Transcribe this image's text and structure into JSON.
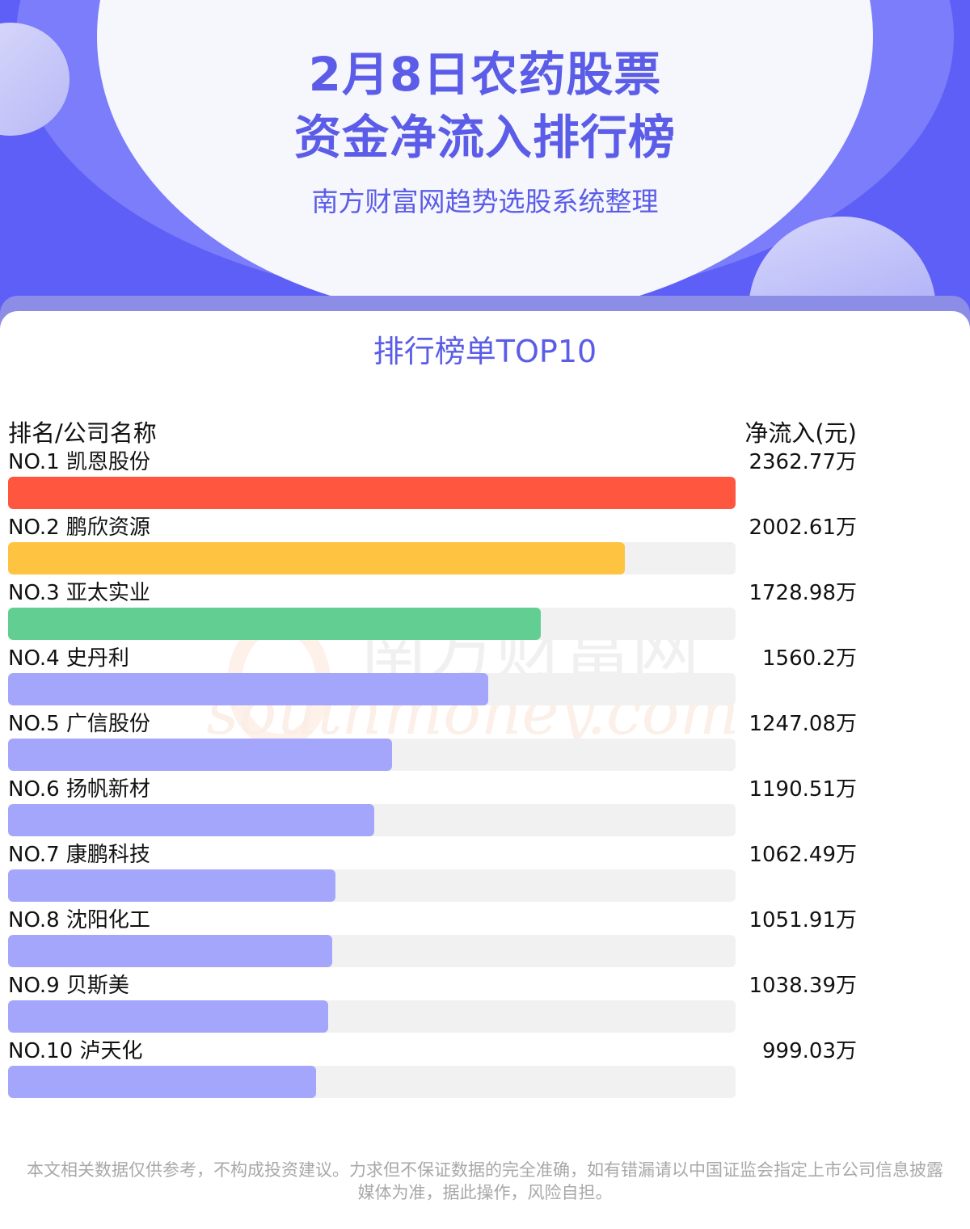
{
  "header": {
    "title_line1": "2月8日农药股票",
    "title_line2": "资金净流入排行榜",
    "subtitle": "南方财富网趋势选股系统整理"
  },
  "section_title": "排行榜单TOP10",
  "columns": {
    "left": "排名/公司名称",
    "right": "净流入(元)"
  },
  "watermark": {
    "cn": "南方财富网",
    "en": "southmoney.com"
  },
  "colors": {
    "header_bg": "#5d5ff6",
    "accent": "#5b5de8",
    "rank1": "#ff5640",
    "rank2": "#ffc342",
    "rank3": "#62ce92",
    "rest": "#a4a6fb",
    "track": "#f1f1f1"
  },
  "footer": {
    "line1": "本文相关数据仅供参考，不构成投资建议。力求但不保证数据的完全准确，如有错漏请以中国证监会指定上市公司信息披露",
    "line2": "媒体为准，据此操作，风险自担。"
  },
  "chart_data": {
    "type": "bar",
    "orientation": "horizontal",
    "categories": [
      "凯恩股份",
      "鹏欣资源",
      "亚太实业",
      "史丹利",
      "广信股份",
      "扬帆新材",
      "康鹏科技",
      "沈阳化工",
      "贝斯美",
      "泸天化"
    ],
    "values": [
      2362.77,
      2002.61,
      1728.98,
      1560.2,
      1247.08,
      1190.51,
      1062.49,
      1051.91,
      1038.39,
      999.03
    ],
    "unit": "万",
    "rows": [
      {
        "label": "NO.1 凯恩股份",
        "value": 2362.77,
        "value_text": "2362.77万"
      },
      {
        "label": "NO.2 鹏欣资源",
        "value": 2002.61,
        "value_text": "2002.61万"
      },
      {
        "label": "NO.3 亚太实业",
        "value": 1728.98,
        "value_text": "1728.98万"
      },
      {
        "label": "NO.4 史丹利",
        "value": 1560.2,
        "value_text": "1560.2万"
      },
      {
        "label": "NO.5 广信股份",
        "value": 1247.08,
        "value_text": "1247.08万"
      },
      {
        "label": "NO.6 扬帆新材",
        "value": 1190.51,
        "value_text": "1190.51万"
      },
      {
        "label": "NO.7 康鹏科技",
        "value": 1062.49,
        "value_text": "1062.49万"
      },
      {
        "label": "NO.8 沈阳化工",
        "value": 1051.91,
        "value_text": "1051.91万"
      },
      {
        "label": "NO.9 贝斯美",
        "value": 1038.39,
        "value_text": "1038.39万"
      },
      {
        "label": "NO.10 泸天化",
        "value": 999.03,
        "value_text": "999.03万"
      }
    ]
  }
}
